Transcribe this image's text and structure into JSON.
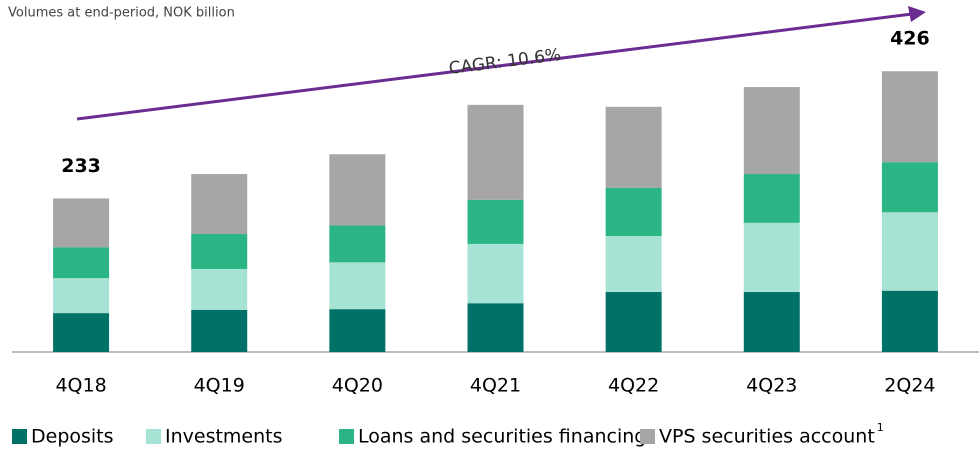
{
  "chart_data": {
    "type": "stacked_bar",
    "subtitle": "Volumes at end-period, NOK billion",
    "annotation": "CAGR: 10.6%",
    "categories": [
      "4Q18",
      "4Q19",
      "4Q20",
      "4Q21",
      "4Q22",
      "4Q23",
      "2Q24"
    ],
    "series": [
      {
        "name": "Deposits",
        "color": "#007167",
        "values": [
          59,
          64,
          65,
          74,
          91,
          91,
          93
        ]
      },
      {
        "name": "Investments",
        "color": "#a6e3d4",
        "values": [
          53,
          62,
          71,
          90,
          85,
          105,
          119
        ]
      },
      {
        "name": "Loans and securities financing",
        "color": "#2bb585",
        "values": [
          47,
          53,
          56,
          67,
          73,
          74,
          76
        ]
      },
      {
        "name": "VPS securities account",
        "color": "#a6a6a6",
        "values": [
          74,
          91,
          108,
          144,
          123,
          132,
          138
        ]
      }
    ],
    "legend_superscript": "1",
    "totals": [
      233,
      null,
      null,
      null,
      null,
      null,
      426
    ],
    "ylim": [
      0,
      440
    ],
    "arrow_color": "#6b2c91"
  }
}
